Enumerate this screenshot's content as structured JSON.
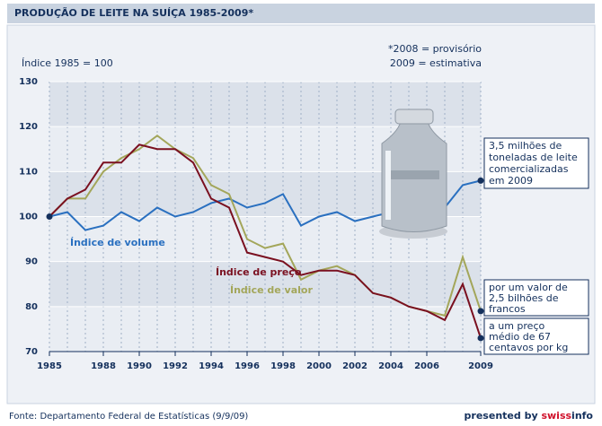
{
  "chart_data": {
    "type": "line",
    "title": "PRODUÇÃO DE LEITE NA SUÍÇA 1985-2009*",
    "y_label": "Índice 1985 = 100",
    "footnotes": [
      "*2008 = provisório",
      "2009 = estimativa"
    ],
    "x": [
      1985,
      1986,
      1987,
      1988,
      1989,
      1990,
      1991,
      1992,
      1993,
      1994,
      1995,
      1996,
      1997,
      1998,
      1999,
      2000,
      2001,
      2002,
      2003,
      2004,
      2005,
      2006,
      2007,
      2008,
      2009
    ],
    "series": [
      {
        "name": "Índice de volume",
        "color": "#2a70c0",
        "values": [
          100,
          101,
          97,
          98,
          101,
          99,
          102,
          100,
          101,
          103,
          104,
          102,
          103,
          105,
          98,
          100,
          101,
          99,
          100,
          101,
          100,
          100,
          102,
          107,
          108
        ]
      },
      {
        "name": "Índice de valor",
        "color": "#a3a65a",
        "values": [
          100,
          104,
          104,
          110,
          113,
          115,
          118,
          115,
          113,
          107,
          105,
          95,
          93,
          94,
          86,
          88,
          89,
          87,
          83,
          82,
          80,
          79,
          78,
          91,
          79
        ]
      },
      {
        "name": "Índice de preço",
        "color": "#7a1020",
        "values": [
          100,
          104,
          106,
          112,
          112,
          116,
          115,
          115,
          112,
          104,
          102,
          92,
          91,
          90,
          87,
          88,
          88,
          87,
          83,
          82,
          80,
          79,
          77,
          85,
          73
        ]
      }
    ],
    "annotations": [
      [
        "3,5 milhões de",
        "toneladas de leite",
        "comercializadas",
        "em 2009"
      ],
      [
        "por um valor de",
        "2,5 bilhões de",
        "francos"
      ],
      [
        "a um preço",
        "médio de 67",
        "centavos por kg"
      ]
    ],
    "xlim": [
      1985,
      2009
    ],
    "ylim": [
      70,
      130
    ],
    "xticks": [
      1985,
      1988,
      1990,
      1992,
      1994,
      1996,
      1998,
      2000,
      2002,
      2004,
      2006,
      2009
    ],
    "yticks": [
      70,
      80,
      90,
      100,
      110,
      120,
      130
    ],
    "grid": true,
    "source": "Fonte: Departamento Federal de Estatísticas (9/9/09)",
    "credit": [
      "presented by",
      "swiss",
      "info"
    ]
  }
}
